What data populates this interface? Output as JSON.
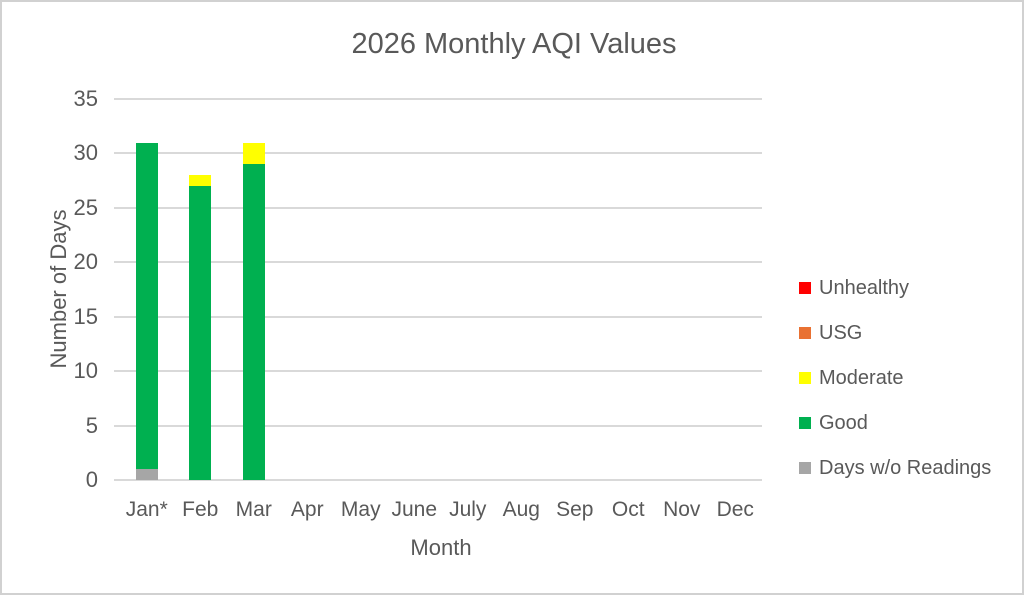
{
  "chart_data": {
    "type": "bar",
    "stacked": true,
    "title": "2026 Monthly AQI Values",
    "xlabel": "Month",
    "ylabel": "Number of Days",
    "ylim": [
      0,
      35
    ],
    "yticks": [
      0,
      5,
      10,
      15,
      20,
      25,
      30,
      35
    ],
    "grid": true,
    "gridline_color": "#d9d9d9",
    "legend_position": "right",
    "categories": [
      "Jan*",
      "Feb",
      "Mar",
      "Apr",
      "May",
      "June",
      "July",
      "Aug",
      "Sep",
      "Oct",
      "Nov",
      "Dec"
    ],
    "stack_order_bottom_to_top": [
      "days_wo_readings",
      "good",
      "moderate",
      "usg",
      "unhealthy"
    ],
    "series": [
      {
        "name": "Unhealthy",
        "key": "unhealthy",
        "color": "#ff0000",
        "values": [
          0,
          0,
          0,
          0,
          0,
          0,
          0,
          0,
          0,
          0,
          0,
          0
        ]
      },
      {
        "name": "USG",
        "key": "usg",
        "color": "#e97132",
        "values": [
          0,
          0,
          0,
          0,
          0,
          0,
          0,
          0,
          0,
          0,
          0,
          0
        ]
      },
      {
        "name": "Moderate",
        "key": "moderate",
        "color": "#ffff00",
        "values": [
          0,
          1,
          2,
          0,
          0,
          0,
          0,
          0,
          0,
          0,
          0,
          0
        ]
      },
      {
        "name": "Good",
        "key": "good",
        "color": "#00b050",
        "values": [
          30,
          27,
          29,
          0,
          0,
          0,
          0,
          0,
          0,
          0,
          0,
          0
        ]
      },
      {
        "name": "Days w/o Readings",
        "key": "days_wo_readings",
        "color": "#a6a6a6",
        "values": [
          1,
          0,
          0,
          0,
          0,
          0,
          0,
          0,
          0,
          0,
          0,
          0
        ]
      }
    ]
  },
  "colors": {
    "text": "#595959",
    "border": "#d1d1d1",
    "background": "#ffffff"
  }
}
